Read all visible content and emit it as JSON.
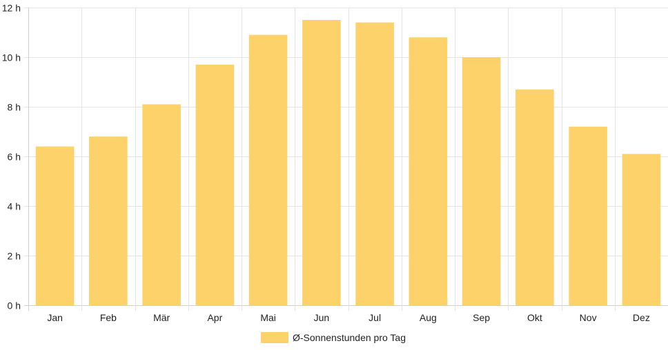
{
  "chart_data": {
    "type": "bar",
    "categories": [
      "Jan",
      "Feb",
      "Mär",
      "Apr",
      "Mai",
      "Jun",
      "Jul",
      "Aug",
      "Sep",
      "Okt",
      "Nov",
      "Dez"
    ],
    "series": [
      {
        "name": "Ø-Sonnenstunden pro Tag",
        "values": [
          6.4,
          6.8,
          8.1,
          9.7,
          10.9,
          11.5,
          11.4,
          10.8,
          10.0,
          8.7,
          7.2,
          6.1
        ]
      }
    ],
    "ylim": [
      0,
      12
    ],
    "ytick_step": 2,
    "ytick_suffix": " h",
    "grid": true,
    "legend_position": "bottom",
    "colors": {
      "bar": "#fdd26a",
      "grid": "#e4e4e4",
      "axis": "#cfcfcf"
    }
  }
}
